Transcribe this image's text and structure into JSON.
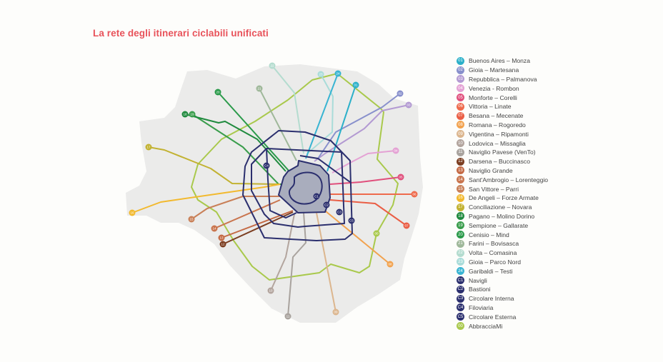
{
  "title": "La rete degli itinerari ciclabili unificati",
  "routes": [
    {
      "id": "01",
      "name": "Buenos Aires – Monza",
      "color": "#2bb0c9"
    },
    {
      "id": "02",
      "name": "Gioia – Martesana",
      "color": "#8890cc"
    },
    {
      "id": "03",
      "name": "Repubblica – Palmanova",
      "color": "#b39ad2"
    },
    {
      "id": "04",
      "name": "Venezia - Rombon",
      "color": "#e4a2d4"
    },
    {
      "id": "05",
      "name": "Monforte – Corelli",
      "color": "#e04f7c"
    },
    {
      "id": "06",
      "name": "Vittoria – Linate",
      "color": "#ee6a4c"
    },
    {
      "id": "07",
      "name": "Besana – Mecenate",
      "color": "#ea5e45"
    },
    {
      "id": "08",
      "name": "Romana – Rogoredo",
      "color": "#f2a24e"
    },
    {
      "id": "09",
      "name": "Vigentina – Ripamonti",
      "color": "#dcb68e"
    },
    {
      "id": "10",
      "name": "Lodovica – Missaglia",
      "color": "#b3a59e"
    },
    {
      "id": "11",
      "name": "Naviglio Pavese (VenTo)",
      "color": "#a9a39e"
    },
    {
      "id": "12",
      "name": "Darsena – Buccinasco",
      "color": "#7b3d20"
    },
    {
      "id": "13",
      "name": "Naviglio Grande",
      "color": "#c46a45"
    },
    {
      "id": "14",
      "name": "Sant'Ambrogio – Lorenteggio",
      "color": "#c9754e"
    },
    {
      "id": "15",
      "name": "San Vittore – Parri",
      "color": "#c98058"
    },
    {
      "id": "16",
      "name": "De Angeli – Forze Armate",
      "color": "#f2b92e"
    },
    {
      "id": "17",
      "name": "Conciliazione – Novara",
      "color": "#c2b232"
    },
    {
      "id": "18",
      "name": "Pagano – Molino Dorino",
      "color": "#1f8a3e"
    },
    {
      "id": "19",
      "name": "Sempione – Gallarate",
      "color": "#3a9d4c"
    },
    {
      "id": "20",
      "name": "Cenisio – Mind",
      "color": "#2a9a4a"
    },
    {
      "id": "21",
      "name": "Farini – Bovisasca",
      "color": "#9fb89a"
    },
    {
      "id": "22",
      "name": "Volta – Comasina",
      "color": "#b4dccf"
    },
    {
      "id": "23",
      "name": "Gioia – Parco Nord",
      "color": "#a9dcd9"
    },
    {
      "id": "24",
      "name": "Garibaldi – Testi",
      "color": "#38b4d2"
    },
    {
      "id": "C1",
      "name": "Navigli",
      "color": "#2b2f6e"
    },
    {
      "id": "C2",
      "name": "Bastioni",
      "color": "#2b2f6e"
    },
    {
      "id": "C3",
      "name": "Circolare Interna",
      "color": "#2b2f6e"
    },
    {
      "id": "C4",
      "name": "Filoviaria",
      "color": "#2b2f6e"
    },
    {
      "id": "C5",
      "name": "Circolare Esterna",
      "color": "#2b2f6e"
    },
    {
      "id": "00",
      "name": "AbbracciaMi",
      "color": "#a9c94c"
    }
  ]
}
